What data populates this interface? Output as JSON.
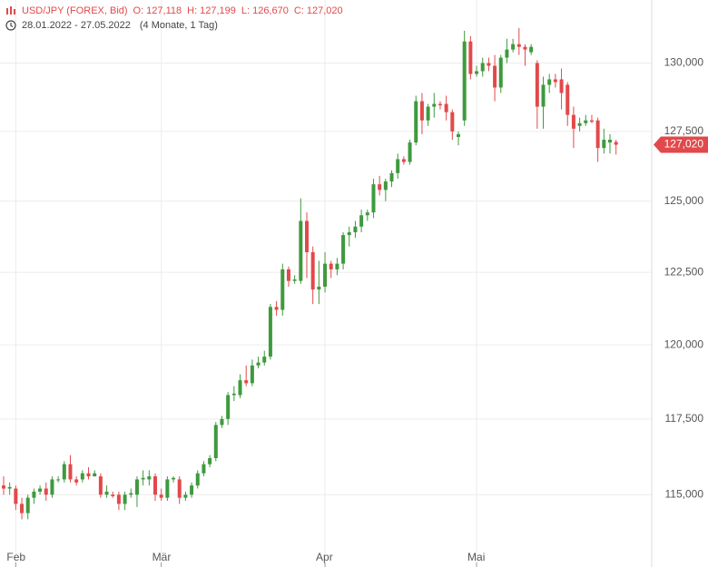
{
  "chart_data": {
    "type": "candlestick",
    "title": "USD/JPY (FOREX, Bid)",
    "ohlc_header": [
      {
        "key": "O:",
        "text": "127,118"
      },
      {
        "key": "H:",
        "text": "127,199"
      },
      {
        "key": "L:",
        "text": "126,670"
      },
      {
        "key": "C:",
        "text": "127,020"
      }
    ],
    "date_range": "28.01.2022 - 27.05.2022",
    "period": "(4 Monate, 1 Tag)",
    "categories": [
      null,
      null,
      "Feb",
      null,
      null,
      null,
      null,
      null,
      null,
      null,
      null,
      null,
      null,
      null,
      null,
      null,
      null,
      null,
      null,
      null,
      null,
      null,
      null,
      null,
      null,
      null,
      "Mär",
      null,
      null,
      null,
      null,
      null,
      null,
      null,
      null,
      null,
      null,
      null,
      null,
      null,
      null,
      null,
      null,
      null,
      null,
      null,
      null,
      null,
      null,
      null,
      null,
      null,
      null,
      "Apr",
      null,
      null,
      null,
      null,
      null,
      null,
      null,
      null,
      null,
      null,
      null,
      null,
      null,
      null,
      null,
      null,
      null,
      null,
      null,
      null,
      null,
      null,
      null,
      null,
      "Mai",
      null,
      null,
      null,
      null,
      null,
      null,
      null,
      null,
      null,
      null,
      null,
      null,
      null,
      null,
      null,
      null,
      null,
      null,
      null,
      null,
      null,
      null,
      null
    ],
    "open": [
      115.3,
      115.2,
      115.2,
      114.7,
      114.4,
      114.9,
      115.1,
      115.2,
      115.0,
      115.5,
      115.5,
      116.0,
      115.5,
      115.5,
      115.7,
      115.6,
      115.6,
      115.0,
      115.0,
      115.0,
      114.7,
      115.0,
      115.0,
      115.5,
      115.5,
      115.6,
      115.0,
      114.9,
      115.5,
      115.5,
      114.9,
      115.0,
      115.3,
      115.7,
      116.0,
      116.2,
      117.3,
      117.5,
      118.3,
      118.3,
      118.8,
      118.7,
      119.3,
      119.4,
      119.6,
      121.3,
      121.2,
      122.6,
      122.2,
      122.2,
      124.3,
      123.2,
      121.9,
      122.0,
      122.8,
      122.6,
      122.8,
      123.8,
      123.9,
      124.1,
      124.5,
      124.6,
      125.6,
      125.4,
      125.7,
      126.0,
      126.5,
      126.4,
      127.1,
      128.6,
      127.9,
      128.4,
      128.5,
      128.5,
      128.2,
      127.3,
      127.9,
      130.8,
      129.6,
      129.7,
      130.0,
      129.9,
      129.1,
      130.2,
      130.5,
      130.7,
      130.6,
      130.4,
      130.0,
      128.4,
      129.2,
      129.4,
      129.4,
      129.2,
      128.1,
      127.7,
      127.8,
      127.9,
      127.9,
      126.9,
      127.1,
      127.118
    ],
    "high": [
      115.6,
      115.4,
      115.3,
      114.9,
      115.0,
      115.2,
      115.3,
      115.4,
      115.6,
      115.6,
      116.1,
      116.3,
      115.6,
      115.8,
      115.9,
      115.8,
      115.7,
      115.3,
      115.1,
      115.1,
      115.1,
      115.2,
      115.6,
      115.8,
      115.8,
      115.7,
      115.2,
      115.6,
      115.6,
      115.6,
      115.1,
      115.4,
      115.8,
      116.1,
      116.3,
      117.4,
      117.6,
      118.4,
      118.6,
      119.0,
      119.3,
      119.5,
      119.6,
      119.8,
      121.4,
      121.5,
      122.8,
      122.7,
      122.4,
      125.1,
      124.6,
      123.4,
      122.9,
      123.2,
      122.9,
      123.0,
      123.9,
      124.1,
      124.3,
      124.7,
      124.7,
      125.8,
      125.9,
      125.8,
      126.1,
      126.7,
      126.6,
      127.2,
      128.8,
      128.9,
      128.5,
      128.9,
      128.6,
      128.8,
      128.3,
      127.5,
      131.2,
      131.0,
      129.9,
      130.2,
      130.2,
      130.3,
      130.3,
      130.9,
      130.9,
      131.3,
      130.7,
      130.7,
      130.1,
      129.5,
      129.6,
      129.6,
      129.8,
      129.3,
      128.4,
      128.0,
      128.1,
      128.1,
      128.0,
      127.6,
      127.4,
      127.199
    ],
    "low": [
      115.0,
      115.0,
      114.5,
      114.2,
      114.2,
      114.7,
      115.0,
      114.8,
      114.9,
      115.4,
      115.4,
      115.4,
      115.3,
      115.4,
      115.5,
      115.6,
      114.9,
      114.9,
      114.9,
      114.5,
      114.5,
      114.9,
      114.6,
      115.3,
      115.3,
      114.8,
      114.8,
      114.8,
      115.4,
      114.7,
      114.8,
      114.9,
      115.2,
      115.6,
      115.9,
      116.1,
      117.2,
      117.3,
      118.1,
      118.2,
      118.6,
      118.6,
      119.2,
      119.3,
      119.5,
      121.0,
      121.0,
      122.0,
      122.1,
      122.1,
      122.3,
      121.4,
      121.4,
      121.8,
      122.3,
      122.4,
      122.6,
      123.4,
      123.7,
      123.9,
      124.3,
      124.4,
      125.2,
      125.0,
      125.5,
      125.8,
      126.3,
      126.3,
      127.0,
      127.4,
      127.7,
      128.0,
      128.3,
      127.9,
      127.2,
      127.0,
      127.7,
      129.4,
      129.5,
      129.5,
      129.7,
      128.6,
      128.9,
      130.0,
      130.4,
      130.3,
      129.9,
      130.3,
      127.6,
      127.6,
      128.9,
      129.1,
      128.3,
      127.7,
      126.9,
      127.5,
      127.7,
      127.8,
      126.4,
      126.7,
      126.7,
      126.67
    ],
    "close": [
      115.2,
      115.25,
      114.7,
      114.4,
      114.9,
      115.1,
      115.2,
      115.0,
      115.5,
      115.5,
      116.0,
      115.5,
      115.4,
      115.7,
      115.6,
      115.7,
      115.0,
      115.1,
      114.95,
      114.7,
      115.0,
      115.05,
      115.5,
      115.55,
      115.6,
      115.0,
      114.9,
      115.5,
      115.55,
      114.9,
      115.0,
      115.3,
      115.7,
      116.0,
      116.2,
      117.3,
      117.5,
      118.3,
      118.35,
      118.8,
      118.7,
      119.3,
      119.4,
      119.6,
      121.3,
      121.2,
      122.6,
      122.2,
      122.25,
      124.3,
      123.2,
      121.9,
      122.0,
      122.8,
      122.6,
      122.8,
      123.8,
      123.9,
      124.1,
      124.5,
      124.6,
      125.6,
      125.4,
      125.7,
      126.0,
      126.5,
      126.4,
      127.1,
      128.6,
      127.9,
      128.4,
      128.5,
      128.45,
      128.2,
      127.5,
      127.4,
      130.8,
      129.6,
      129.7,
      130.0,
      129.9,
      129.1,
      130.2,
      130.5,
      130.7,
      130.6,
      130.5,
      130.6,
      128.4,
      129.2,
      129.4,
      129.3,
      128.9,
      128.1,
      127.6,
      127.8,
      127.9,
      127.85,
      126.9,
      127.2,
      127.2,
      127.02
    ],
    "up_color": "#3e9a3e",
    "down_color": "#e2494b",
    "log_scale": true,
    "ylim": [
      113.39,
      132.35
    ],
    "yticks": [
      {
        "value": 115,
        "label": "115,000"
      },
      {
        "value": 117.5,
        "label": "117,500"
      },
      {
        "value": 120,
        "label": "120,000"
      },
      {
        "value": 122.5,
        "label": "122,500"
      },
      {
        "value": 125,
        "label": "125,000"
      },
      {
        "value": 127.5,
        "label": "127,500"
      },
      {
        "value": 130,
        "label": "130,000"
      }
    ],
    "grid": true,
    "last_price": {
      "value": 127.02,
      "label": "127,020"
    }
  }
}
